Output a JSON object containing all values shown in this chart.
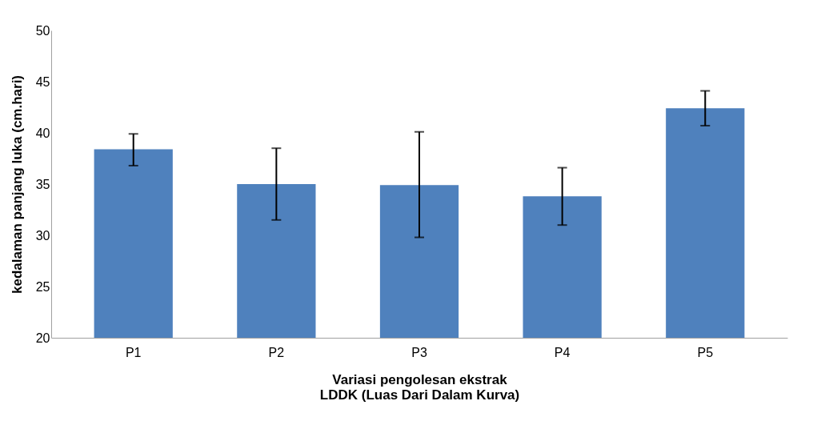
{
  "chart_data": {
    "type": "bar",
    "xlabel": "Variasi pengolesan ekstrak\nLDDK (Luas Dari Dalam Kurva)",
    "ylabel": "kedalaman panjang luka (cm.hari)",
    "categories": [
      "P1",
      "P2",
      "P3",
      "P4",
      "P5"
    ],
    "values": [
      38.4,
      35.0,
      34.9,
      33.8,
      42.4
    ],
    "errors": [
      [
        36.8,
        39.9
      ],
      [
        31.5,
        38.5
      ],
      [
        29.8,
        40.1
      ],
      [
        31.0,
        36.6
      ],
      [
        40.7,
        44.1
      ]
    ],
    "color": "#4f81bd",
    "ylim": [
      20,
      50
    ],
    "yticks": [
      20,
      25,
      30,
      35,
      40,
      45,
      50
    ],
    "grid": false
  }
}
